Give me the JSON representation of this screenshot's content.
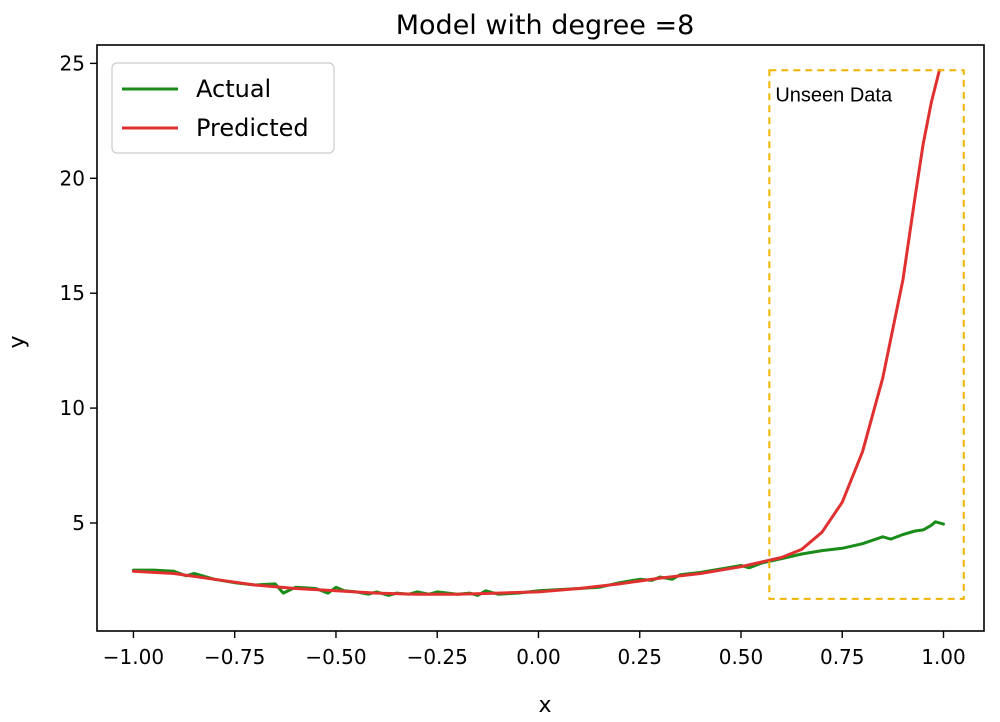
{
  "chart_data": {
    "type": "line",
    "title": "Model with degree =8",
    "xlabel": "x",
    "ylabel": "y",
    "xlim": [
      -1.09,
      1.1
    ],
    "ylim": [
      0.3,
      25.8
    ],
    "x_ticks": [
      -1.0,
      -0.75,
      -0.5,
      -0.25,
      0.0,
      0.25,
      0.5,
      0.75,
      1.0
    ],
    "x_tick_labels": [
      "−1.00",
      "−0.75",
      "−0.50",
      "−0.25",
      "0.00",
      "0.25",
      "0.50",
      "0.75",
      "1.00"
    ],
    "y_ticks": [
      5,
      10,
      15,
      20,
      25
    ],
    "y_tick_labels": [
      "5",
      "10",
      "15",
      "20",
      "25"
    ],
    "grid": false,
    "legend_position": "top-left",
    "series": [
      {
        "name": "Actual",
        "color": "#1a8c1a",
        "x": [
          -1.0,
          -0.95,
          -0.9,
          -0.87,
          -0.85,
          -0.8,
          -0.75,
          -0.7,
          -0.65,
          -0.63,
          -0.6,
          -0.55,
          -0.52,
          -0.5,
          -0.48,
          -0.45,
          -0.42,
          -0.4,
          -0.37,
          -0.35,
          -0.32,
          -0.3,
          -0.27,
          -0.25,
          -0.2,
          -0.17,
          -0.15,
          -0.13,
          -0.1,
          -0.05,
          0.0,
          0.05,
          0.1,
          0.15,
          0.2,
          0.25,
          0.28,
          0.3,
          0.33,
          0.35,
          0.4,
          0.45,
          0.5,
          0.52,
          0.55,
          0.6,
          0.65,
          0.7,
          0.75,
          0.8,
          0.85,
          0.87,
          0.9,
          0.93,
          0.95,
          0.97,
          0.98,
          1.0
        ],
        "y": [
          2.95,
          2.95,
          2.9,
          2.7,
          2.8,
          2.55,
          2.4,
          2.3,
          2.35,
          1.95,
          2.2,
          2.15,
          1.95,
          2.2,
          2.05,
          2.0,
          1.9,
          2.0,
          1.85,
          1.95,
          1.9,
          2.0,
          1.9,
          2.0,
          1.9,
          1.95,
          1.85,
          2.05,
          1.9,
          1.95,
          2.05,
          2.1,
          2.15,
          2.2,
          2.4,
          2.55,
          2.5,
          2.65,
          2.55,
          2.75,
          2.85,
          3.0,
          3.15,
          3.05,
          3.25,
          3.45,
          3.65,
          3.8,
          3.9,
          4.1,
          4.4,
          4.3,
          4.5,
          4.65,
          4.7,
          4.9,
          5.05,
          4.95
        ]
      },
      {
        "name": "Predicted",
        "color": "#e03030",
        "x": [
          -1.0,
          -0.9,
          -0.8,
          -0.7,
          -0.6,
          -0.5,
          -0.4,
          -0.3,
          -0.2,
          -0.1,
          0.0,
          0.1,
          0.2,
          0.3,
          0.4,
          0.5,
          0.55,
          0.6,
          0.65,
          0.7,
          0.75,
          0.8,
          0.85,
          0.9,
          0.93,
          0.95,
          0.97,
          0.99
        ],
        "y": [
          2.9,
          2.8,
          2.55,
          2.3,
          2.15,
          2.05,
          1.95,
          1.9,
          1.9,
          1.95,
          2.0,
          2.15,
          2.35,
          2.6,
          2.8,
          3.1,
          3.3,
          3.5,
          3.85,
          4.6,
          5.9,
          8.1,
          11.3,
          15.6,
          19.2,
          21.5,
          23.3,
          24.7
        ]
      }
    ],
    "annotation": {
      "text": "Unseen Data",
      "color": "#f0b400",
      "x_range": [
        0.57,
        1.05
      ],
      "y_range": [
        1.7,
        24.7
      ]
    }
  }
}
